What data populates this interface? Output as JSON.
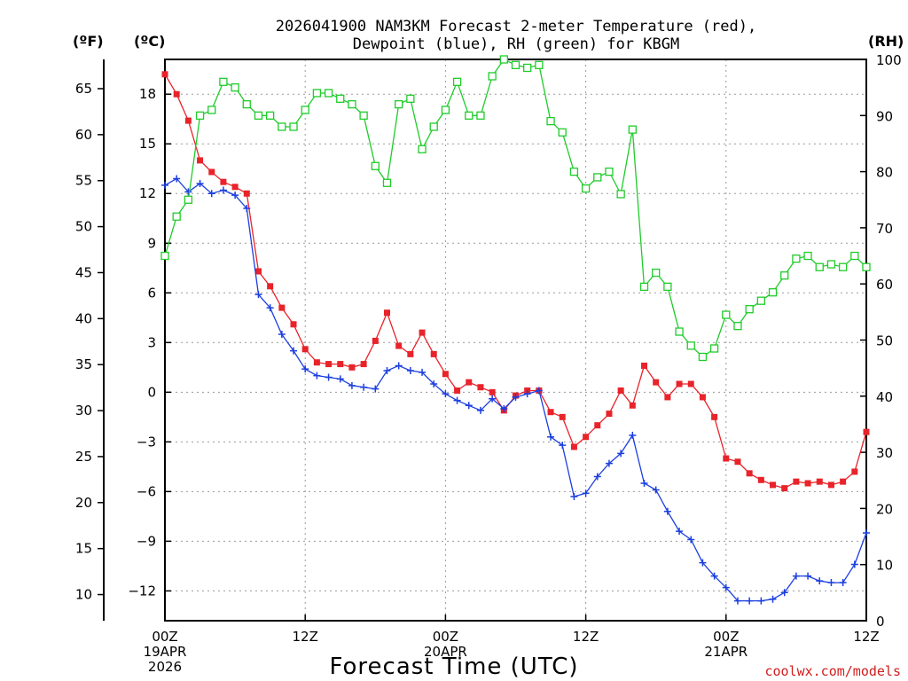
{
  "chart_data": {
    "type": "line",
    "title_line1": "2026041900 NAM3KM Forecast 2-meter Temperature (red),",
    "title_line2": "Dewpoint (blue), RH (green) for KBGM",
    "xlabel": "Forecast Time (UTC)",
    "credit": "coolwx.com/models",
    "units": {
      "fahrenheit": "(ºF)",
      "celsius": "(ºC)",
      "rh": "(RH)"
    },
    "x_range_hours": [
      0,
      60
    ],
    "celsius_range": [
      -13.8,
      20.1
    ],
    "rh_range": [
      0,
      100
    ],
    "celsius_ticks": [
      18,
      15,
      12,
      9,
      6,
      3,
      0,
      -3,
      -6,
      -9,
      -12
    ],
    "fahrenheit_ticks": [
      65,
      60,
      55,
      50,
      45,
      40,
      35,
      30,
      25,
      20,
      15,
      10
    ],
    "rh_ticks": [
      100,
      90,
      80,
      70,
      60,
      50,
      40,
      30,
      20,
      10,
      0
    ],
    "x_ticks": [
      {
        "hour": 0,
        "lines": [
          "00Z",
          "19APR",
          "2026"
        ]
      },
      {
        "hour": 12,
        "lines": [
          "12Z"
        ]
      },
      {
        "hour": 24,
        "lines": [
          "00Z",
          "20APR"
        ]
      },
      {
        "hour": 36,
        "lines": [
          "12Z"
        ]
      },
      {
        "hour": 48,
        "lines": [
          "00Z",
          "21APR"
        ]
      },
      {
        "hour": 60,
        "lines": [
          "12Z"
        ]
      }
    ],
    "series": [
      {
        "name": "Temperature",
        "axis": "celsius",
        "color": "#e8232a",
        "marker": "filled-square",
        "values": [
          [
            0,
            19.2
          ],
          [
            1,
            18.0
          ],
          [
            2,
            16.4
          ],
          [
            3,
            14.0
          ],
          [
            4,
            13.3
          ],
          [
            5,
            12.7
          ],
          [
            6,
            12.4
          ],
          [
            7,
            12.0
          ],
          [
            8,
            7.3
          ],
          [
            9,
            6.4
          ],
          [
            10,
            5.1
          ],
          [
            11,
            4.1
          ],
          [
            12,
            2.6
          ],
          [
            13,
            1.8
          ],
          [
            14,
            1.7
          ],
          [
            15,
            1.7
          ],
          [
            16,
            1.5
          ],
          [
            17,
            1.7
          ],
          [
            18,
            3.1
          ],
          [
            19,
            4.8
          ],
          [
            20,
            2.8
          ],
          [
            21,
            2.3
          ],
          [
            22,
            3.6
          ],
          [
            23,
            2.3
          ],
          [
            24,
            1.1
          ],
          [
            25,
            0.1
          ],
          [
            26,
            0.6
          ],
          [
            27,
            0.3
          ],
          [
            28,
            0.0
          ],
          [
            29,
            -1.1
          ],
          [
            30,
            -0.2
          ],
          [
            31,
            0.1
          ],
          [
            32,
            0.1
          ],
          [
            33,
            -1.2
          ],
          [
            34,
            -1.5
          ],
          [
            35,
            -3.3
          ],
          [
            36,
            -2.7
          ],
          [
            37,
            -2.0
          ],
          [
            38,
            -1.3
          ],
          [
            39,
            0.1
          ],
          [
            40,
            -0.8
          ],
          [
            41,
            1.6
          ],
          [
            42,
            0.6
          ],
          [
            43,
            -0.3
          ],
          [
            44,
            0.5
          ],
          [
            45,
            0.5
          ],
          [
            46,
            -0.3
          ],
          [
            47,
            -1.5
          ],
          [
            48,
            -4.0
          ],
          [
            49,
            -4.2
          ],
          [
            50,
            -4.9
          ],
          [
            51,
            -5.3
          ],
          [
            52,
            -5.6
          ],
          [
            53,
            -5.8
          ],
          [
            54,
            -5.4
          ],
          [
            55,
            -5.5
          ],
          [
            56,
            -5.4
          ],
          [
            57,
            -5.6
          ],
          [
            58,
            -5.4
          ],
          [
            59,
            -4.8
          ],
          [
            60,
            -2.4
          ]
        ]
      },
      {
        "name": "Dewpoint",
        "axis": "celsius",
        "color": "#1c3fe0",
        "marker": "plus",
        "values": [
          [
            0,
            12.5
          ],
          [
            1,
            12.9
          ],
          [
            2,
            12.1
          ],
          [
            3,
            12.6
          ],
          [
            4,
            12.0
          ],
          [
            5,
            12.2
          ],
          [
            6,
            11.9
          ],
          [
            7,
            11.1
          ],
          [
            8,
            5.9
          ],
          [
            9,
            5.1
          ],
          [
            10,
            3.5
          ],
          [
            11,
            2.5
          ],
          [
            12,
            1.4
          ],
          [
            13,
            1.0
          ],
          [
            14,
            0.9
          ],
          [
            15,
            0.8
          ],
          [
            16,
            0.4
          ],
          [
            17,
            0.3
          ],
          [
            18,
            0.2
          ],
          [
            19,
            1.3
          ],
          [
            20,
            1.6
          ],
          [
            21,
            1.3
          ],
          [
            22,
            1.2
          ],
          [
            23,
            0.5
          ],
          [
            24,
            -0.1
          ],
          [
            25,
            -0.5
          ],
          [
            26,
            -0.8
          ],
          [
            27,
            -1.1
          ],
          [
            28,
            -0.4
          ],
          [
            29,
            -1.0
          ],
          [
            30,
            -0.3
          ],
          [
            31,
            -0.1
          ],
          [
            32,
            0.1
          ],
          [
            33,
            -2.7
          ],
          [
            34,
            -3.2
          ],
          [
            35,
            -6.3
          ],
          [
            36,
            -6.1
          ],
          [
            37,
            -5.1
          ],
          [
            38,
            -4.3
          ],
          [
            39,
            -3.7
          ],
          [
            40,
            -2.6
          ],
          [
            41,
            -5.5
          ],
          [
            42,
            -5.9
          ],
          [
            43,
            -7.2
          ],
          [
            44,
            -8.4
          ],
          [
            45,
            -8.9
          ],
          [
            46,
            -10.3
          ],
          [
            47,
            -11.1
          ],
          [
            48,
            -11.8
          ],
          [
            49,
            -12.6
          ],
          [
            50,
            -12.6
          ],
          [
            51,
            -12.6
          ],
          [
            52,
            -12.5
          ],
          [
            53,
            -12.1
          ],
          [
            54,
            -11.1
          ],
          [
            55,
            -11.1
          ],
          [
            56,
            -11.4
          ],
          [
            57,
            -11.5
          ],
          [
            58,
            -11.5
          ],
          [
            59,
            -10.4
          ],
          [
            60,
            -8.5
          ]
        ]
      },
      {
        "name": "RH",
        "axis": "rh",
        "color": "#1fcc2a",
        "marker": "open-square",
        "values": [
          [
            0,
            65
          ],
          [
            1,
            72
          ],
          [
            2,
            75
          ],
          [
            3,
            90
          ],
          [
            4,
            91
          ],
          [
            5,
            96
          ],
          [
            6,
            95
          ],
          [
            7,
            92
          ],
          [
            8,
            90
          ],
          [
            9,
            90
          ],
          [
            10,
            88
          ],
          [
            11,
            88
          ],
          [
            12,
            91
          ],
          [
            13,
            94
          ],
          [
            14,
            94
          ],
          [
            15,
            93
          ],
          [
            16,
            92
          ],
          [
            17,
            90
          ],
          [
            18,
            81
          ],
          [
            19,
            78
          ],
          [
            20,
            92
          ],
          [
            21,
            93
          ],
          [
            22,
            84
          ],
          [
            23,
            88
          ],
          [
            24,
            91
          ],
          [
            25,
            96
          ],
          [
            26,
            90
          ],
          [
            27,
            90
          ],
          [
            28,
            97
          ],
          [
            29,
            100
          ],
          [
            30,
            99
          ],
          [
            31,
            98.5
          ],
          [
            32,
            99
          ],
          [
            33,
            89
          ],
          [
            34,
            87
          ],
          [
            35,
            80
          ],
          [
            36,
            77
          ],
          [
            37,
            79
          ],
          [
            38,
            80
          ],
          [
            39,
            76
          ],
          [
            40,
            87.5
          ],
          [
            41,
            59.5
          ],
          [
            42,
            62
          ],
          [
            43,
            59.5
          ],
          [
            44,
            51.5
          ],
          [
            45,
            49
          ],
          [
            46,
            47
          ],
          [
            47,
            48.5
          ],
          [
            48,
            54.5
          ],
          [
            49,
            52.5
          ],
          [
            50,
            55.5
          ],
          [
            51,
            57
          ],
          [
            52,
            58.5
          ],
          [
            53,
            61.5
          ],
          [
            54,
            64.5
          ],
          [
            55,
            65
          ],
          [
            56,
            63
          ],
          [
            57,
            63.5
          ],
          [
            58,
            63
          ],
          [
            59,
            65
          ],
          [
            60,
            63
          ]
        ]
      }
    ],
    "grid": true
  }
}
